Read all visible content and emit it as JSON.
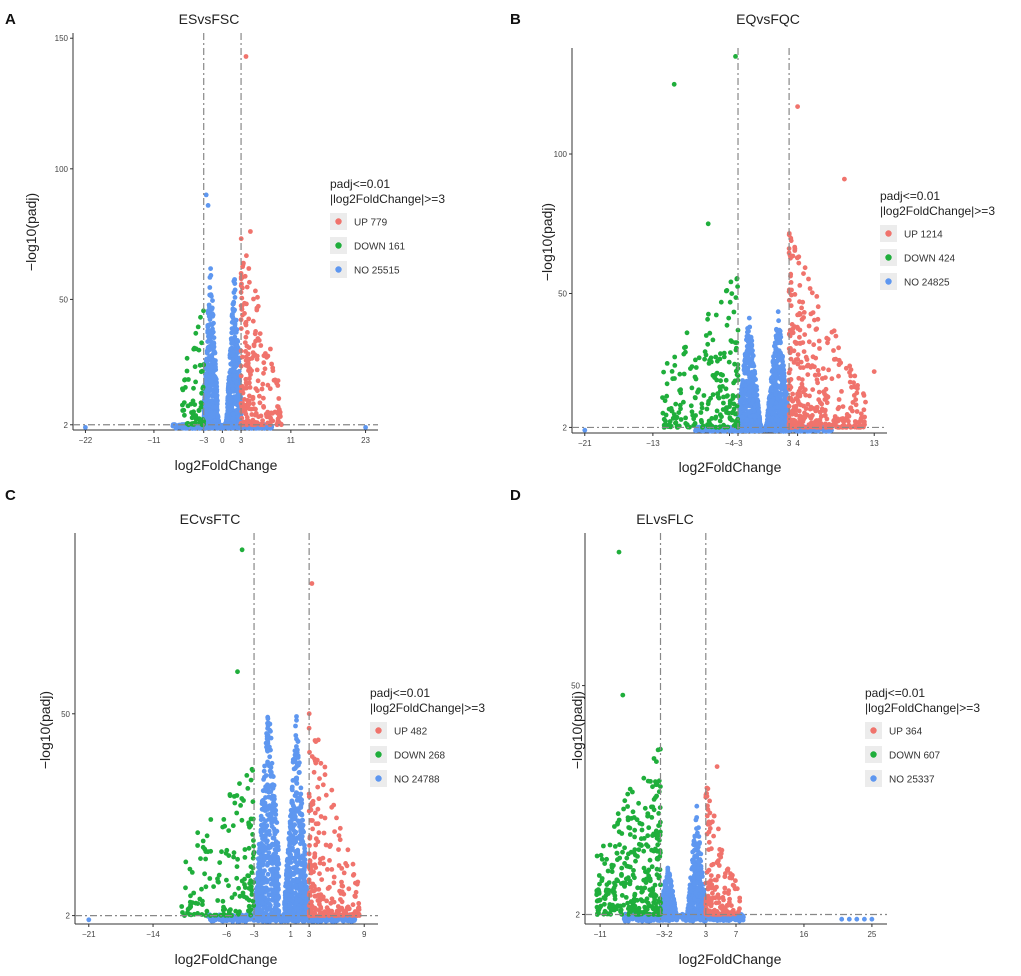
{
  "colors": {
    "up": "#f0736c",
    "down": "#1fae3b",
    "no": "#5e97f0"
  },
  "chart_data": [
    {
      "panel": "A",
      "type": "scatter",
      "title": "ESvsFSC",
      "xlabel": "log2FoldChange",
      "ylabel": "−log10(padj)",
      "xlim": [
        -24,
        25
      ],
      "ylim": [
        0,
        152
      ],
      "xticks": [
        -22,
        -11,
        -3,
        0,
        3,
        11,
        23
      ],
      "xtick_labels": [
        "−22",
        "−11",
        "−3",
        "0",
        "3",
        "11",
        "23"
      ],
      "yticks": [
        2,
        50,
        100,
        150
      ],
      "ytick_labels": [
        "2",
        "50",
        "100",
        "150"
      ],
      "vlines": [
        -3,
        3
      ],
      "hline": 2,
      "legend": {
        "title1": "padj<=0.01",
        "title2": "|log2FoldChange|>=3",
        "entries": [
          {
            "label": "UP 779",
            "key": "up"
          },
          {
            "label": "DOWN 161",
            "key": "down"
          },
          {
            "label": "NO 25515",
            "key": "no"
          }
        ]
      },
      "sample_points": [
        {
          "x": 3.8,
          "y": 143,
          "group": "up"
        },
        {
          "x": -2.6,
          "y": 90,
          "group": "no"
        },
        {
          "x": -2.3,
          "y": 86,
          "group": "no"
        },
        {
          "x": 4.5,
          "y": 76,
          "group": "up"
        },
        {
          "x": -22.0,
          "y": 1,
          "group": "no"
        },
        {
          "x": 23.0,
          "y": 1,
          "group": "no"
        }
      ],
      "density": {
        "no": {
          "count": 900,
          "lobes": [
            {
              "center": -1.9,
              "xmin": -3.0,
              "xmax": -0.6,
              "peak": 64
            },
            {
              "center": 1.9,
              "xmin": 0.6,
              "xmax": 3.0,
              "peak": 60
            }
          ]
        },
        "up": {
          "count": 220,
          "xmin": 3.0,
          "xmax": 9.5,
          "ymax": 78
        },
        "down": {
          "count": 70,
          "xmin": -6.5,
          "xmax": -3.0,
          "ymax": 48
        }
      }
    },
    {
      "panel": "B",
      "type": "scatter",
      "title": "EQvsFQC",
      "xlabel": "log2FoldChange",
      "ylabel": "−log10(padj)",
      "xlim": [
        -22.5,
        14.5
      ],
      "ylim": [
        0,
        138
      ],
      "xticks": [
        -21,
        -13,
        -4,
        -3,
        3,
        4,
        13
      ],
      "xtick_labels": [
        "−21",
        "−13",
        "−4",
        "−3",
        "3",
        "4",
        "13"
      ],
      "yticks": [
        2,
        50,
        100
      ],
      "ytick_labels": [
        "2",
        "50",
        "100"
      ],
      "vlines": [
        -3,
        3
      ],
      "hline": 2,
      "legend": {
        "title1": "padj<=0.01",
        "title2": "|log2FoldChange|>=3",
        "entries": [
          {
            "label": "UP 1214",
            "key": "up"
          },
          {
            "label": "DOWN 424",
            "key": "down"
          },
          {
            "label": "NO 24825",
            "key": "no"
          }
        ]
      },
      "sample_points": [
        {
          "x": -3.3,
          "y": 135,
          "group": "down"
        },
        {
          "x": -10.5,
          "y": 125,
          "group": "down"
        },
        {
          "x": 4.0,
          "y": 117,
          "group": "up"
        },
        {
          "x": 9.5,
          "y": 91,
          "group": "up"
        },
        {
          "x": -6.5,
          "y": 75,
          "group": "down"
        },
        {
          "x": -21.0,
          "y": 1,
          "group": "no"
        },
        {
          "x": 13.0,
          "y": 22,
          "group": "up"
        }
      ],
      "density": {
        "no": {
          "count": 1100,
          "lobes": [
            {
              "center": -1.7,
              "xmin": -3.0,
              "xmax": -0.3,
              "peak": 42
            },
            {
              "center": 1.7,
              "xmin": 0.3,
              "xmax": 3.0,
              "peak": 44
            }
          ]
        },
        "up": {
          "count": 380,
          "xmin": 3.0,
          "xmax": 12.0,
          "ymax": 70
        },
        "down": {
          "count": 220,
          "xmin": -12.0,
          "xmax": -3.0,
          "ymax": 55
        }
      }
    },
    {
      "panel": "C",
      "type": "scatter",
      "title": "ECvsFTC",
      "xlabel": "log2FoldChange",
      "ylabel": "−log10(padj)",
      "xlim": [
        -22.5,
        10.5
      ],
      "ylim": [
        0,
        93
      ],
      "xticks": [
        -21,
        -14,
        -6,
        -3,
        1,
        3,
        9
      ],
      "xtick_labels": [
        "−21",
        "−14",
        "−6",
        "−3",
        "1",
        "3",
        "9"
      ],
      "yticks": [
        2,
        50
      ],
      "ytick_labels": [
        "2",
        "50"
      ],
      "vlines": [
        -3,
        3
      ],
      "hline": 2,
      "legend": {
        "title1": "padj<=0.01",
        "title2": "|log2FoldChange|>=3",
        "entries": [
          {
            "label": "UP 482",
            "key": "up"
          },
          {
            "label": "DOWN 268",
            "key": "down"
          },
          {
            "label": "NO 24788",
            "key": "no"
          }
        ]
      },
      "sample_points": [
        {
          "x": -4.3,
          "y": 89,
          "group": "down"
        },
        {
          "x": 3.3,
          "y": 81,
          "group": "up"
        },
        {
          "x": -4.8,
          "y": 60,
          "group": "down"
        },
        {
          "x": -21.0,
          "y": 1,
          "group": "no"
        },
        {
          "x": 8.3,
          "y": 10,
          "group": "up"
        }
      ],
      "density": {
        "no": {
          "count": 1100,
          "lobes": [
            {
              "center": -1.4,
              "xmin": -3.0,
              "xmax": -0.3,
              "peak": 52
            },
            {
              "center": 1.6,
              "xmin": 0.3,
              "xmax": 3.0,
              "peak": 50
            }
          ]
        },
        "up": {
          "count": 220,
          "xmin": 3.0,
          "xmax": 8.5,
          "ymax": 50
        },
        "down": {
          "count": 150,
          "xmin": -11.0,
          "xmax": -3.0,
          "ymax": 36
        }
      }
    },
    {
      "panel": "D",
      "type": "scatter",
      "title": "ELvsFLC",
      "xlabel": "log2FoldChange",
      "ylabel": "−log10(padj)",
      "xlim": [
        -13,
        27
      ],
      "ylim": [
        0,
        82
      ],
      "xticks": [
        -11,
        -3,
        -2,
        3,
        7,
        16,
        25
      ],
      "xtick_labels": [
        "−11",
        "−3",
        "−2",
        "3",
        "7",
        "16",
        "25"
      ],
      "yticks": [
        2,
        50
      ],
      "ytick_labels": [
        "2",
        "50"
      ],
      "vlines": [
        -3,
        3
      ],
      "hline": 2,
      "legend": {
        "title1": "padj<=0.01",
        "title2": "|log2FoldChange|>=3",
        "entries": [
          {
            "label": "UP 364",
            "key": "up"
          },
          {
            "label": "DOWN 607",
            "key": "down"
          },
          {
            "label": "NO 25337",
            "key": "no"
          }
        ]
      },
      "sample_points": [
        {
          "x": -8.5,
          "y": 78,
          "group": "down"
        },
        {
          "x": -8.0,
          "y": 48,
          "group": "down"
        },
        {
          "x": 4.5,
          "y": 33,
          "group": "up"
        },
        {
          "x": 21.0,
          "y": 1,
          "group": "no"
        },
        {
          "x": 22.0,
          "y": 1,
          "group": "no"
        },
        {
          "x": 23.0,
          "y": 1,
          "group": "no"
        },
        {
          "x": 24.0,
          "y": 1,
          "group": "no"
        },
        {
          "x": 25.0,
          "y": 1,
          "group": "no"
        }
      ],
      "density": {
        "no": {
          "count": 700,
          "lobes": [
            {
              "center": -2.0,
              "xmin": -3.0,
              "xmax": -0.8,
              "peak": 12
            },
            {
              "center": 1.8,
              "xmin": 0.5,
              "xmax": 3.0,
              "peak": 24
            }
          ]
        },
        "up": {
          "count": 160,
          "xmin": 3.0,
          "xmax": 7.5,
          "ymax": 28
        },
        "down": {
          "count": 320,
          "xmin": -11.5,
          "xmax": -3.0,
          "ymax": 36
        }
      }
    }
  ]
}
